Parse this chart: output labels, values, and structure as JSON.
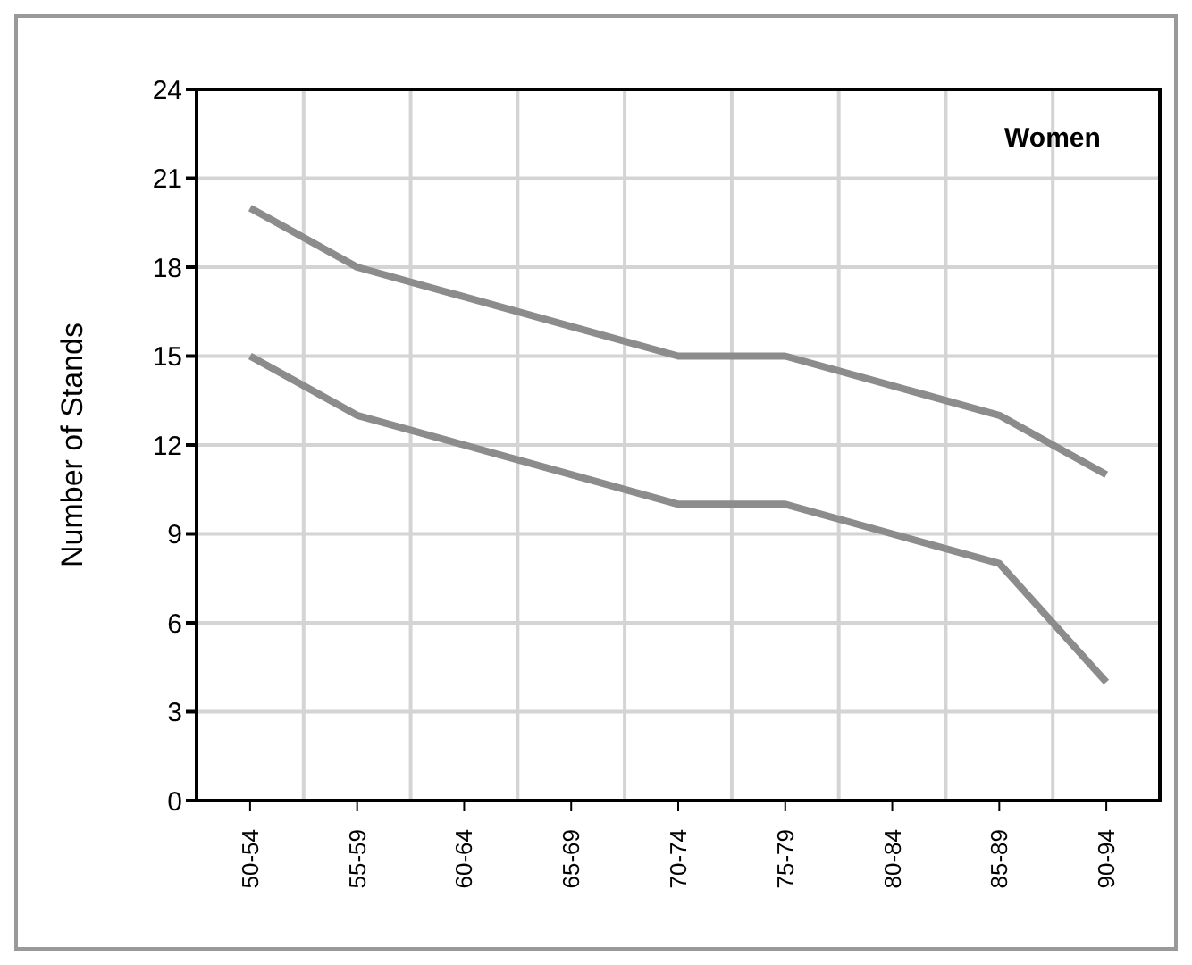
{
  "chart_data": {
    "type": "line",
    "ylabel": "Number of Stands",
    "annotations": [
      "Women"
    ],
    "categories": [
      "50-54",
      "55-59",
      "60-64",
      "65-69",
      "70-74",
      "75-79",
      "80-84",
      "85-89",
      "90-94"
    ],
    "series": [
      {
        "color": "#8c8c8c",
        "values": [
          20,
          18,
          17,
          16,
          15,
          15,
          14,
          13,
          11
        ]
      },
      {
        "color": "#8c8c8c",
        "values": [
          15,
          13,
          12,
          11,
          10,
          10,
          9,
          8,
          4
        ]
      }
    ],
    "ylim": [
      0,
      24
    ],
    "yticks": [
      0,
      3,
      6,
      9,
      12,
      15,
      18,
      21,
      24
    ],
    "grid": true,
    "marker": "none",
    "line_style": "solid"
  }
}
